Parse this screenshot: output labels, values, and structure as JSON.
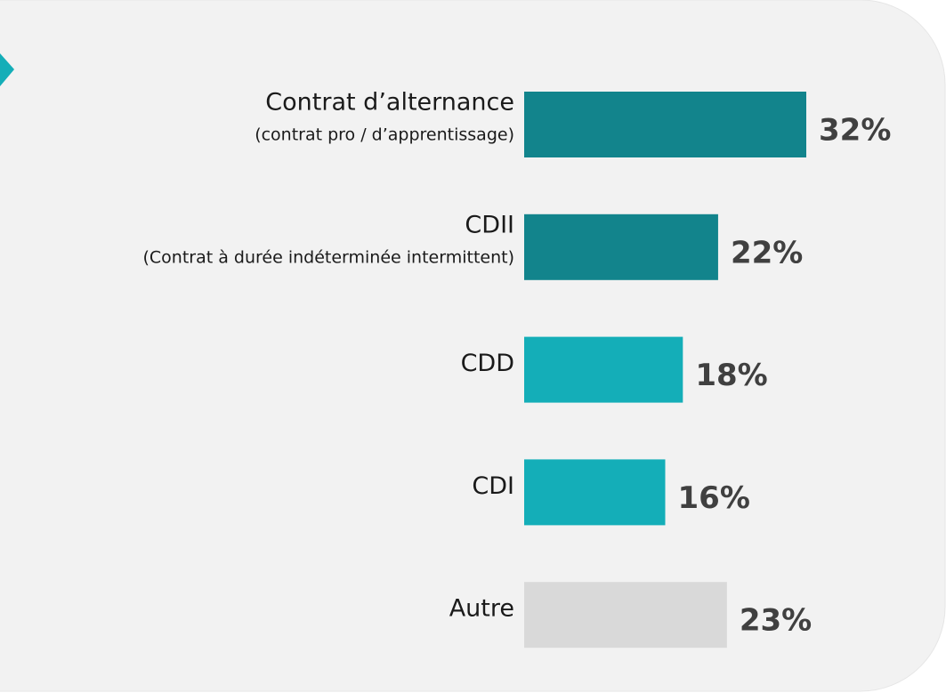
{
  "chart_data": {
    "type": "hbar",
    "categories": [
      "Contrat d’alternance",
      "CDII",
      "CDD",
      "CDI",
      "Autre"
    ],
    "subtitles": [
      "(contrat pro / d’apprentissage)",
      "(Contrat à durée indéterminée intermittent)",
      null,
      null,
      null
    ],
    "values": [
      32,
      22,
      18,
      16,
      23
    ],
    "value_labels": [
      "32%",
      "22%",
      "18%",
      "16%",
      "23%"
    ],
    "colors": [
      "#12848c",
      "#12848c",
      "#14aeb8",
      "#14aeb8",
      "#d9d9d9"
    ]
  }
}
